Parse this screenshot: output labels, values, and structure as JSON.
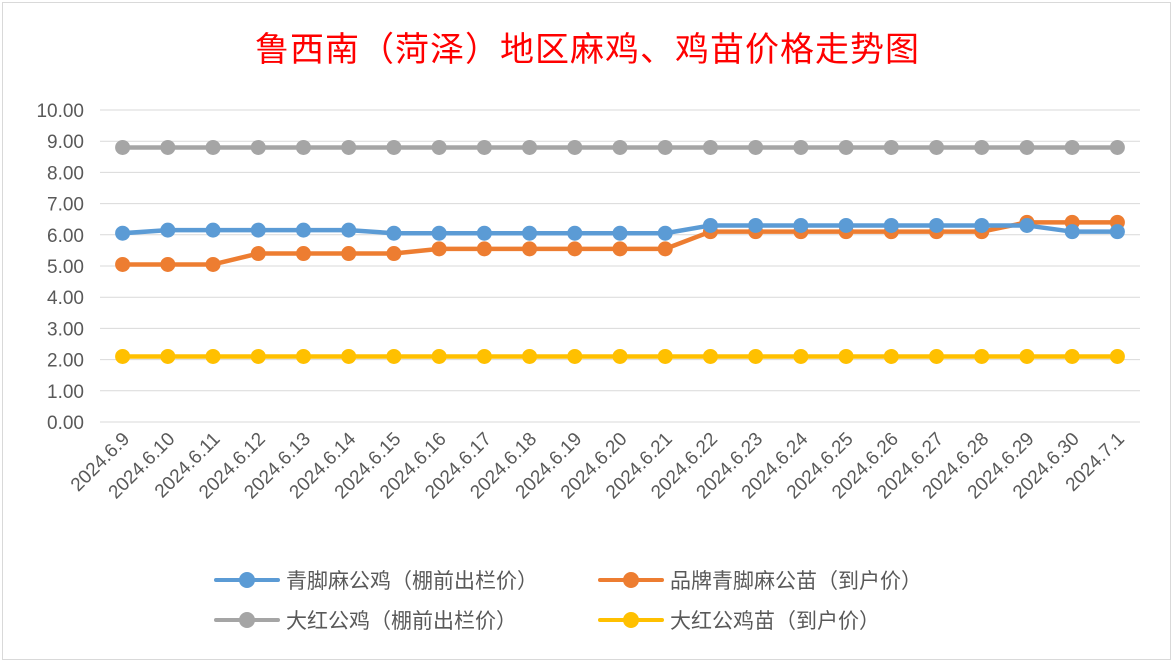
{
  "title": "鲁西南（菏泽）地区麻鸡、鸡苗价格走势图",
  "chart_data": {
    "type": "line",
    "title": "鲁西南（菏泽）地区麻鸡、鸡苗价格走势图",
    "xlabel": "",
    "ylabel": "",
    "ylim": [
      0,
      10
    ],
    "y_ticks": [
      "0.00",
      "1.00",
      "2.00",
      "3.00",
      "4.00",
      "5.00",
      "6.00",
      "7.00",
      "8.00",
      "9.00",
      "10.00"
    ],
    "grid": "horizontal",
    "legend_position": "bottom",
    "categories": [
      "2024.6.9",
      "2024.6.10",
      "2024.6.11",
      "2024.6.12",
      "2024.6.13",
      "2024.6.14",
      "2024.6.15",
      "2024.6.16",
      "2024.6.17",
      "2024.6.18",
      "2024.6.19",
      "2024.6.20",
      "2024.6.21",
      "2024.6.22",
      "2024.6.23",
      "2024.6.24",
      "2024.6.25",
      "2024.6.26",
      "2024.6.27",
      "2024.6.28",
      "2024.6.29",
      "2024.6.30",
      "2024.7.1"
    ],
    "series": [
      {
        "name": "青脚麻公鸡（棚前出栏价）",
        "color": "#5b9bd5",
        "values": [
          6.05,
          6.15,
          6.15,
          6.15,
          6.15,
          6.15,
          6.05,
          6.05,
          6.05,
          6.05,
          6.05,
          6.05,
          6.05,
          6.3,
          6.3,
          6.3,
          6.3,
          6.3,
          6.3,
          6.3,
          6.3,
          6.1,
          6.1
        ]
      },
      {
        "name": "品牌青脚麻公苗（到户价）",
        "color": "#ed7d31",
        "values": [
          5.05,
          5.05,
          5.05,
          5.4,
          5.4,
          5.4,
          5.4,
          5.55,
          5.55,
          5.55,
          5.55,
          5.55,
          5.55,
          6.1,
          6.1,
          6.1,
          6.1,
          6.1,
          6.1,
          6.1,
          6.4,
          6.4,
          6.4
        ]
      },
      {
        "name": "大红公鸡（棚前出栏价）",
        "color": "#a5a5a5",
        "values": [
          8.8,
          8.8,
          8.8,
          8.8,
          8.8,
          8.8,
          8.8,
          8.8,
          8.8,
          8.8,
          8.8,
          8.8,
          8.8,
          8.8,
          8.8,
          8.8,
          8.8,
          8.8,
          8.8,
          8.8,
          8.8,
          8.8,
          8.8
        ]
      },
      {
        "name": "大红公鸡苗（到户价）",
        "color": "#ffc000",
        "values": [
          2.1,
          2.1,
          2.1,
          2.1,
          2.1,
          2.1,
          2.1,
          2.1,
          2.1,
          2.1,
          2.1,
          2.1,
          2.1,
          2.1,
          2.1,
          2.1,
          2.1,
          2.1,
          2.1,
          2.1,
          2.1,
          2.1,
          2.1
        ]
      }
    ]
  }
}
